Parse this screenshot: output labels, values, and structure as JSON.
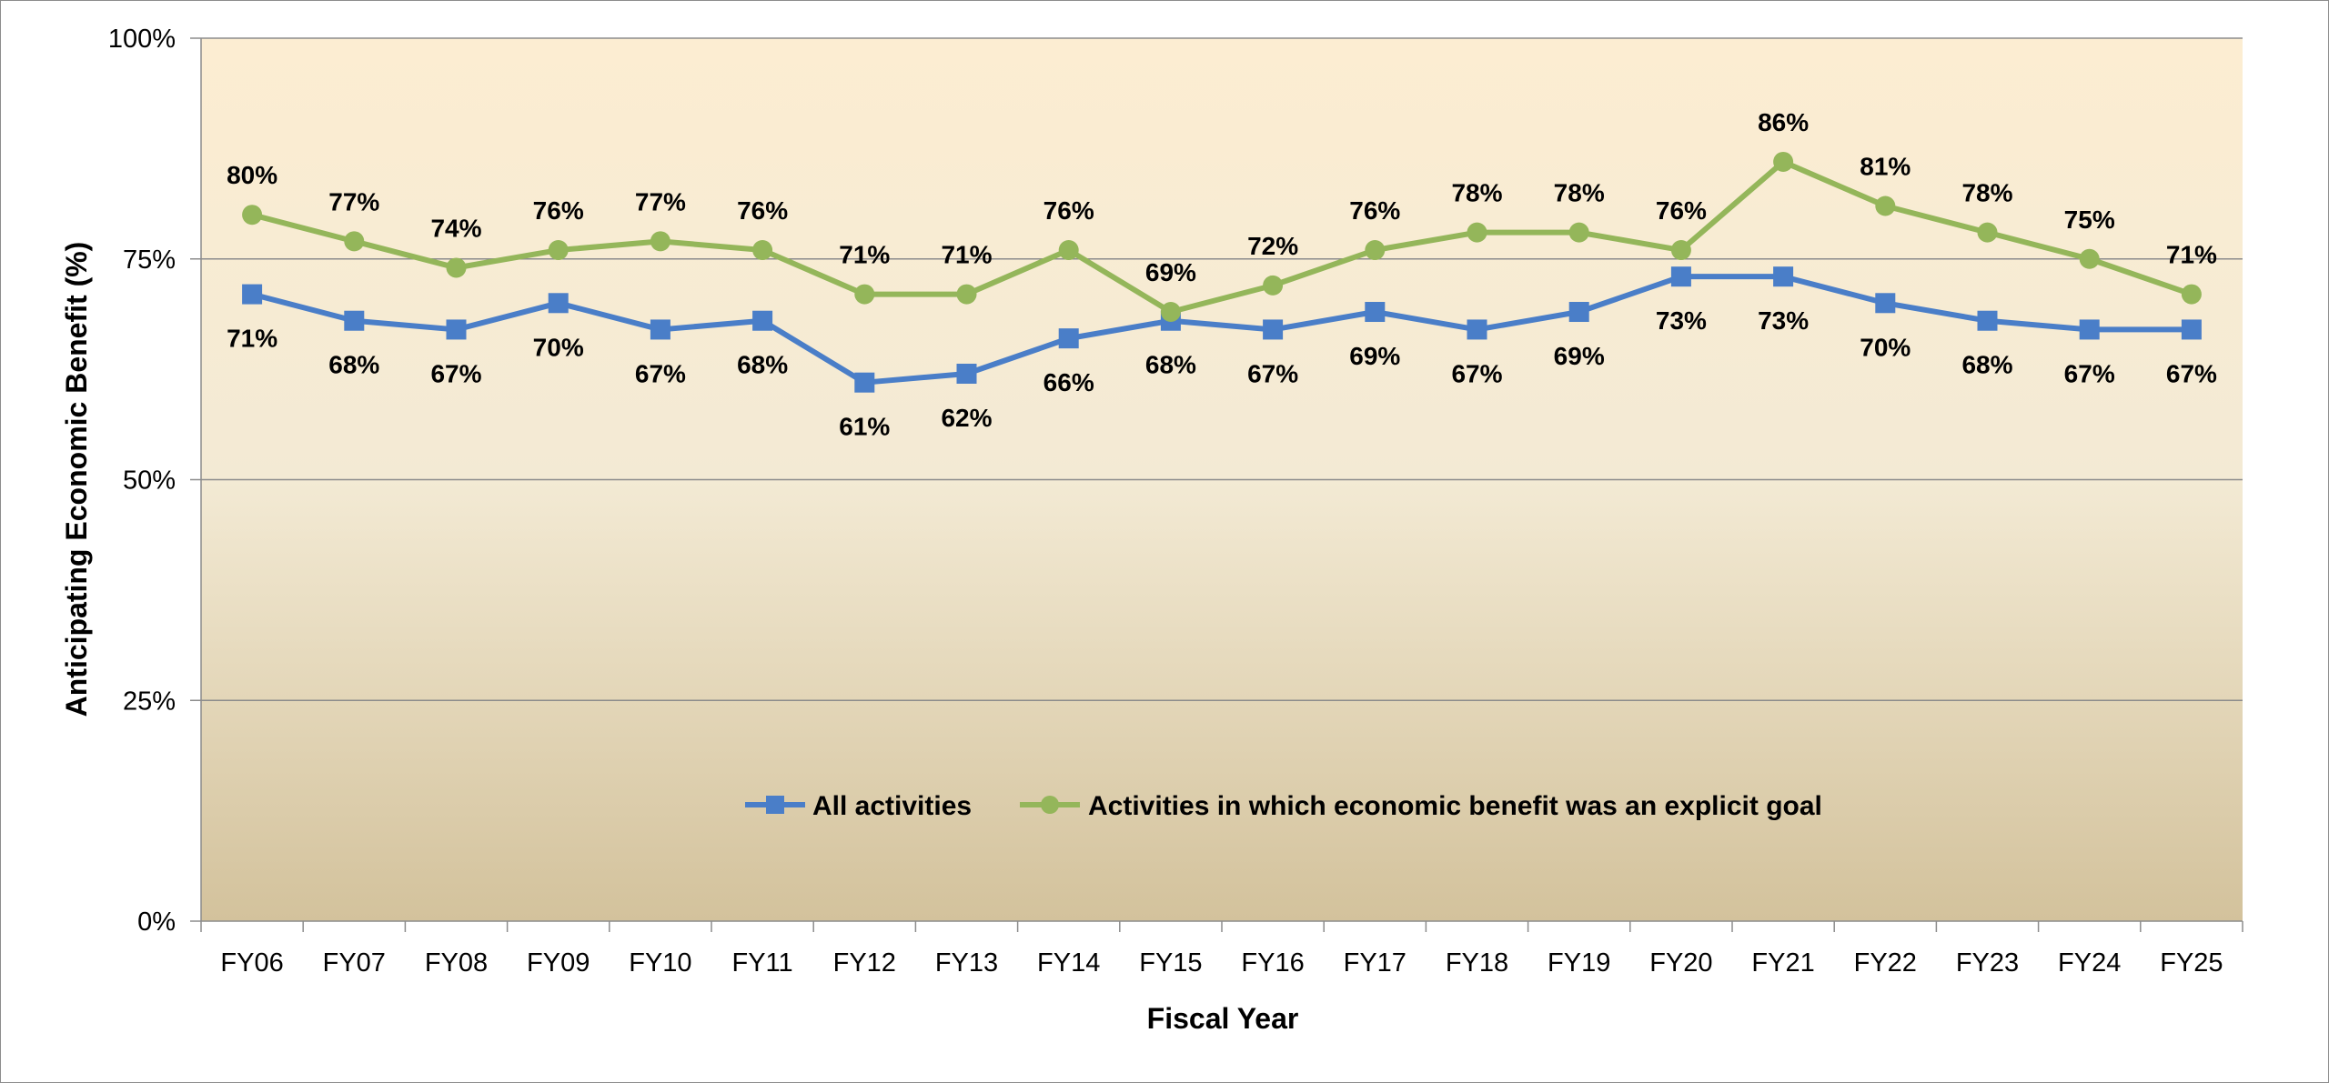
{
  "chart_data": {
    "type": "line",
    "title": "",
    "xlabel": "Fiscal Year",
    "ylabel": "Anticipating Economic Benefit (%)",
    "ylim": [
      0,
      100
    ],
    "yticks": [
      0,
      25,
      50,
      75,
      100
    ],
    "ytick_labels": [
      "0%",
      "25%",
      "50%",
      "75%",
      "100%"
    ],
    "grid": true,
    "legend_position": "center",
    "categories": [
      "FY06",
      "FY07",
      "FY08",
      "FY09",
      "FY10",
      "FY11",
      "FY12",
      "FY13",
      "FY14",
      "FY15",
      "FY16",
      "FY17",
      "FY18",
      "FY19",
      "FY20",
      "FY21",
      "FY22",
      "FY23",
      "FY24",
      "FY25"
    ],
    "series": [
      {
        "name": "All activities",
        "marker": "square",
        "color": "#4A7EC8",
        "label_position": "below",
        "values": [
          71,
          68,
          67,
          70,
          67,
          68,
          61,
          62,
          66,
          68,
          67,
          69,
          67,
          69,
          73,
          73,
          70,
          68,
          67,
          67
        ],
        "labels": [
          "71%",
          "68%",
          "67%",
          "70%",
          "67%",
          "68%",
          "61%",
          "62%",
          "66%",
          "68%",
          "67%",
          "69%",
          "67%",
          "69%",
          "73%",
          "73%",
          "70%",
          "68%",
          "67%",
          "67%"
        ]
      },
      {
        "name": "Activities in which economic benefit was an explicit goal",
        "marker": "circle",
        "color": "#94B65A",
        "label_position": "above",
        "values": [
          80,
          77,
          74,
          76,
          77,
          76,
          71,
          71,
          76,
          69,
          72,
          76,
          78,
          78,
          76,
          86,
          81,
          78,
          75,
          71
        ],
        "labels": [
          "80%",
          "77%",
          "74%",
          "76%",
          "77%",
          "76%",
          "71%",
          "71%",
          "76%",
          "69%",
          "72%",
          "76%",
          "78%",
          "78%",
          "76%",
          "86%",
          "81%",
          "78%",
          "75%",
          "71%"
        ]
      }
    ],
    "colors": {
      "plot_background_top": "#FCEDD2",
      "plot_background_bottom": "#D3C29C",
      "gridline": "#8C8C8C",
      "axis": "#8C8C8C"
    }
  }
}
